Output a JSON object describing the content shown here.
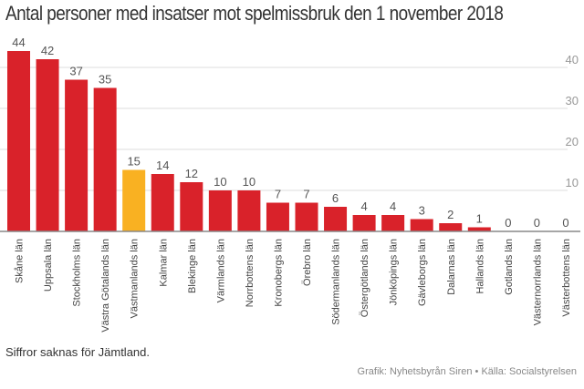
{
  "chart_data": {
    "type": "bar",
    "title": "Antal personer med insatser mot spelmissbruk den 1 november 2018",
    "xlabel": "",
    "ylabel": "",
    "ylim": [
      0,
      45
    ],
    "yticks": [
      10,
      20,
      30,
      40
    ],
    "grid": true,
    "yaxis_side": "right",
    "categories": [
      "Skåne län",
      "Uppsala län",
      "Stockholms län",
      "Västra Götalands län",
      "Västmanlands län",
      "Kalmar län",
      "Blekinge län",
      "Värmlands län",
      "Norrbottens län",
      "Kronobergs län",
      "Örebro län",
      "Södermanlands län",
      "Östergötlands län",
      "Jönköpings län",
      "Gävleborgs län",
      "Dalarnas län",
      "Hallands län",
      "Gotlands län",
      "Västernorrlands län",
      "Västerbottens län"
    ],
    "values": [
      44,
      42,
      37,
      35,
      15,
      14,
      12,
      10,
      10,
      7,
      7,
      6,
      4,
      4,
      3,
      2,
      1,
      0,
      0,
      0
    ],
    "highlight_index": 4,
    "colors": {
      "default": "#d9222a",
      "highlight": "#f9b122",
      "grid": "#dddddd",
      "axis": "#888888",
      "label": "#555555",
      "tick": "#999999"
    }
  },
  "note": "Siffror saknas för Jämtland.",
  "source": "Grafik: Nyhetsbyrån Siren • Källa: Socialstyrelsen"
}
